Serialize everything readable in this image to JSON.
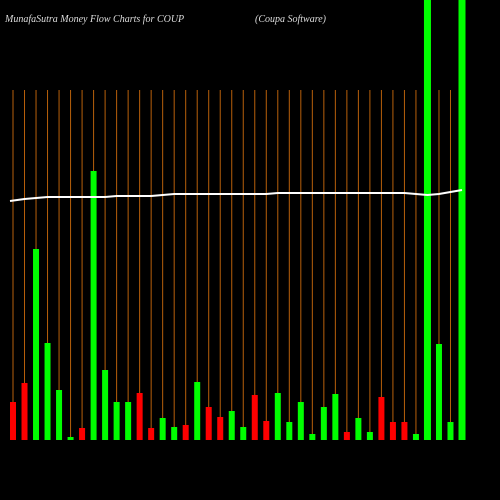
{
  "chart_data": {
    "type": "bar",
    "title": "MunafaSutra  Money Flow  Charts for COUP",
    "subtitle": "(Coupa Software)",
    "values": [
      38,
      57,
      191,
      97,
      50,
      3,
      12,
      269,
      70,
      38,
      38,
      47,
      12,
      22,
      13,
      15,
      58,
      33,
      23,
      29,
      13,
      45,
      19,
      47,
      18,
      38,
      6,
      33,
      46,
      8,
      22,
      8,
      43,
      18,
      18,
      6,
      440,
      96,
      18,
      440
    ],
    "colors": [
      "#ff0000",
      "#ff0000",
      "#00ff00",
      "#00ff00",
      "#00ff00",
      "#00ff00",
      "#ff0000",
      "#00ff00",
      "#00ff00",
      "#00ff00",
      "#00ff00",
      "#ff0000",
      "#ff0000",
      "#00ff00",
      "#00ff00",
      "#ff0000",
      "#00ff00",
      "#ff0000",
      "#ff0000",
      "#00ff00",
      "#00ff00",
      "#ff0000",
      "#ff0000",
      "#00ff00",
      "#00ff00",
      "#00ff00",
      "#00ff00",
      "#00ff00",
      "#00ff00",
      "#ff0000",
      "#00ff00",
      "#00ff00",
      "#ff0000",
      "#ff0000",
      "#ff0000",
      "#00ff00",
      "#00ff00",
      "#00ff00",
      "#00ff00",
      "#00ff00"
    ],
    "line": {
      "color": "#ffffff",
      "values": [
        239,
        241,
        242,
        243,
        243,
        243,
        243,
        243,
        243,
        244,
        244,
        244,
        244,
        245,
        246,
        246,
        246,
        246,
        246,
        246,
        246,
        246,
        246,
        247,
        247,
        247,
        247,
        247,
        247,
        247,
        247,
        247,
        247,
        247,
        247,
        246,
        245,
        246,
        248,
        250
      ]
    },
    "ylim": [
      0,
      440
    ],
    "gridline_color": "#b8600b"
  }
}
